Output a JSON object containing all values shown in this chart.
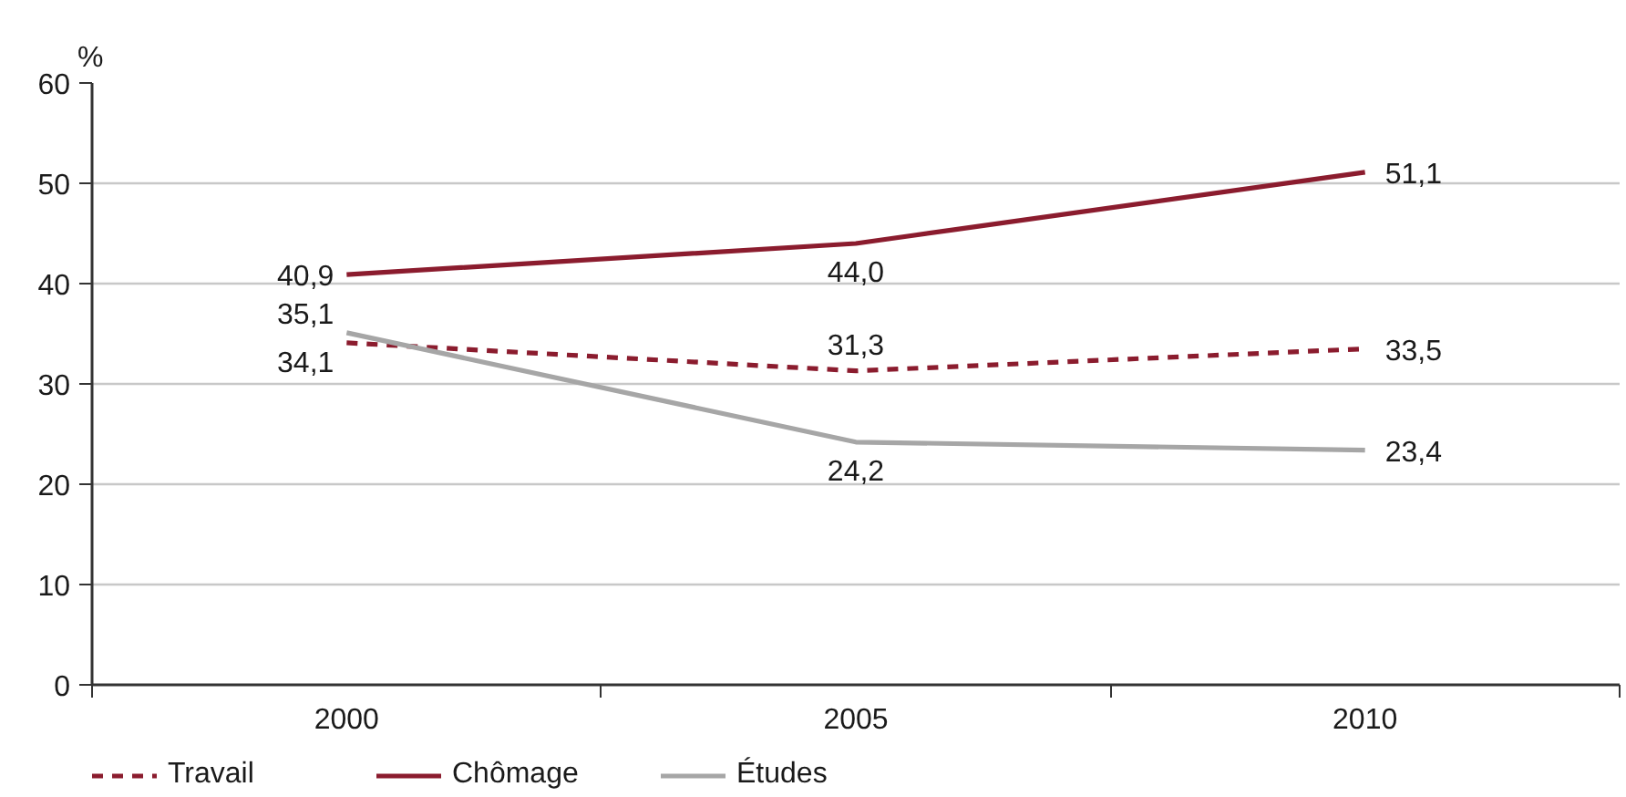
{
  "chart_data": {
    "type": "line",
    "ylabel": "%",
    "categories": [
      "2000",
      "2005",
      "2010"
    ],
    "series": [
      {
        "name": "Travail",
        "color": "#8b1c2e",
        "line_style": "dashed",
        "values": [
          34.1,
          31.3,
          33.5
        ],
        "value_labels": [
          "34,1",
          "31,3",
          "33,5"
        ]
      },
      {
        "name": "Chômage",
        "color": "#8b1c2e",
        "line_style": "solid",
        "values": [
          40.9,
          44.0,
          51.1
        ],
        "value_labels": [
          "40,9",
          "44,0",
          "51,1"
        ]
      },
      {
        "name": "Études",
        "color": "#a6a6a6",
        "line_style": "solid",
        "values": [
          35.1,
          24.2,
          23.4
        ],
        "value_labels": [
          "35,1",
          "24,2",
          "23,4"
        ]
      }
    ],
    "ylim": [
      0,
      60
    ],
    "yticks": [
      0,
      10,
      20,
      30,
      40,
      50,
      60
    ],
    "grid": "y",
    "legend": "bottom"
  }
}
